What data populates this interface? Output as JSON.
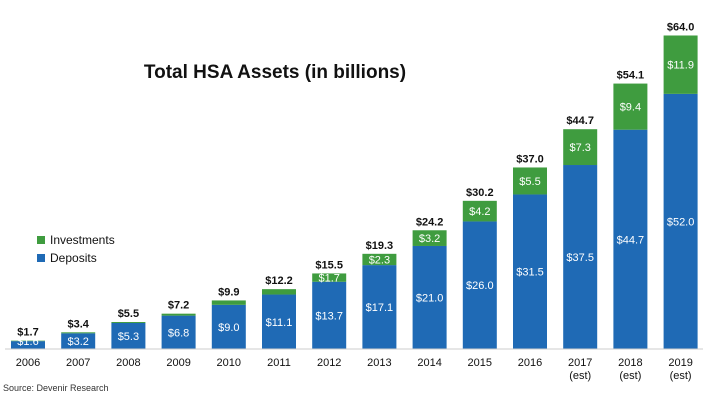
{
  "chart_data": {
    "type": "bar",
    "stacked": true,
    "title": "Total HSA Assets (in billions)",
    "categories": [
      "2006",
      "2007",
      "2008",
      "2009",
      "2010",
      "2011",
      "2012",
      "2013",
      "2014",
      "2015",
      "2016",
      "2017\n(est)",
      "2018\n(est)",
      "2019\n(est)"
    ],
    "series": [
      {
        "name": "Deposits",
        "color": "#1f6ab5",
        "values": [
          1.6,
          3.2,
          5.3,
          6.8,
          9.0,
          11.1,
          13.7,
          17.1,
          21.0,
          26.0,
          31.5,
          37.5,
          44.7,
          52.0
        ],
        "labels": [
          "$1.6",
          "$3.2",
          "$5.3",
          "$6.8",
          "$9.0",
          "$11.1",
          "$13.7",
          "$17.1",
          "$21.0",
          "$26.0",
          "$31.5",
          "$37.5",
          "$44.7",
          "$52.0"
        ]
      },
      {
        "name": "Investments",
        "color": "#3f9c3f",
        "values": [
          0.1,
          0.2,
          0.2,
          0.4,
          0.9,
          1.1,
          1.7,
          2.3,
          3.2,
          4.2,
          5.5,
          7.3,
          9.4,
          11.9
        ],
        "labels": [
          "",
          "",
          "",
          "",
          "",
          "",
          "$1.7",
          "$2.3",
          "$3.2",
          "$4.2",
          "$5.5",
          "$7.3",
          "$9.4",
          "$11.9"
        ]
      }
    ],
    "totals": [
      1.7,
      3.4,
      5.5,
      7.2,
      9.9,
      12.2,
      15.5,
      19.3,
      24.2,
      30.2,
      37.0,
      44.7,
      54.1,
      64.0
    ],
    "total_labels": [
      "$1.7",
      "$3.4",
      "$5.5",
      "$7.2",
      "$9.9",
      "$12.2",
      "$15.5",
      "$19.3",
      "$24.2",
      "$30.2",
      "$37.0",
      "$44.7",
      "$54.1",
      "$64.0"
    ],
    "ylim": [
      0,
      64
    ],
    "grid": false,
    "legend": {
      "position": "left",
      "items": [
        {
          "name": "Investments",
          "color": "#3f9c3f"
        },
        {
          "name": "Deposits",
          "color": "#1f6ab5"
        }
      ]
    },
    "source": "Source: Devenir Research"
  }
}
